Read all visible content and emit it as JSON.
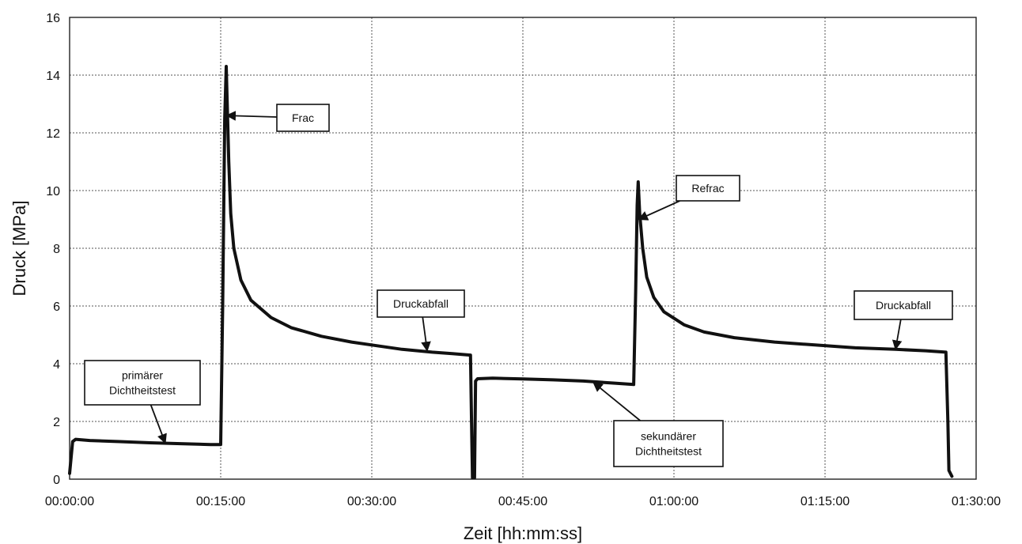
{
  "chart_data": {
    "type": "line",
    "title": "",
    "xlabel": "Zeit [hh:mm:ss]",
    "ylabel": "Druck [MPa]",
    "x_unit": "minutes",
    "xlim": [
      0,
      90
    ],
    "ylim": [
      0,
      16
    ],
    "x_ticks": [
      {
        "value": 0,
        "label": "00:00:00"
      },
      {
        "value": 15,
        "label": "00:15:00"
      },
      {
        "value": 30,
        "label": "00:30:00"
      },
      {
        "value": 45,
        "label": "00:45:00"
      },
      {
        "value": 60,
        "label": "01:00:00"
      },
      {
        "value": 75,
        "label": "01:15:00"
      },
      {
        "value": 90,
        "label": "01:30:00"
      }
    ],
    "y_ticks": [
      {
        "value": 0,
        "label": "0"
      },
      {
        "value": 2,
        "label": "2"
      },
      {
        "value": 4,
        "label": "4"
      },
      {
        "value": 6,
        "label": "6"
      },
      {
        "value": 8,
        "label": "8"
      },
      {
        "value": 10,
        "label": "10"
      },
      {
        "value": 12,
        "label": "12"
      },
      {
        "value": 14,
        "label": "14"
      },
      {
        "value": 16,
        "label": "16"
      }
    ],
    "grid": true,
    "series": [
      {
        "color": "#111111",
        "points": [
          [
            0.0,
            0.2
          ],
          [
            0.3,
            1.3
          ],
          [
            0.6,
            1.38
          ],
          [
            2,
            1.34
          ],
          [
            5,
            1.3
          ],
          [
            8,
            1.26
          ],
          [
            11,
            1.23
          ],
          [
            14,
            1.2
          ],
          [
            15.0,
            1.2
          ],
          [
            15.2,
            6.0
          ],
          [
            15.4,
            12.5
          ],
          [
            15.55,
            14.3
          ],
          [
            15.8,
            11.0
          ],
          [
            16.0,
            9.2
          ],
          [
            16.3,
            8.0
          ],
          [
            17.0,
            6.9
          ],
          [
            18.0,
            6.2
          ],
          [
            20.0,
            5.6
          ],
          [
            22.0,
            5.25
          ],
          [
            25.0,
            4.95
          ],
          [
            28.0,
            4.75
          ],
          [
            30.0,
            4.65
          ],
          [
            33.0,
            4.5
          ],
          [
            36.0,
            4.4
          ],
          [
            38.0,
            4.35
          ],
          [
            39.8,
            4.3
          ],
          [
            39.9,
            2.0
          ],
          [
            40.0,
            0.05
          ],
          [
            40.2,
            0.05
          ],
          [
            40.3,
            3.4
          ],
          [
            40.5,
            3.48
          ],
          [
            42,
            3.5
          ],
          [
            45,
            3.47
          ],
          [
            48,
            3.44
          ],
          [
            51,
            3.4
          ],
          [
            54,
            3.33
          ],
          [
            56.0,
            3.28
          ],
          [
            56.2,
            6.5
          ],
          [
            56.35,
            9.5
          ],
          [
            56.45,
            10.3
          ],
          [
            56.6,
            9.2
          ],
          [
            56.9,
            8.0
          ],
          [
            57.3,
            7.0
          ],
          [
            58.0,
            6.3
          ],
          [
            59.0,
            5.8
          ],
          [
            61.0,
            5.35
          ],
          [
            63.0,
            5.1
          ],
          [
            66.0,
            4.9
          ],
          [
            70.0,
            4.75
          ],
          [
            74.0,
            4.65
          ],
          [
            78.0,
            4.55
          ],
          [
            82.0,
            4.5
          ],
          [
            85.0,
            4.45
          ],
          [
            87.0,
            4.4
          ],
          [
            87.2,
            2.0
          ],
          [
            87.3,
            0.3
          ],
          [
            87.6,
            0.1
          ]
        ]
      }
    ],
    "annotations": [
      {
        "id": "frac",
        "lines": [
          "Frac"
        ],
        "arrow_to": [
          15.6,
          12.6
        ]
      },
      {
        "id": "refrac",
        "lines": [
          "Refrac"
        ],
        "arrow_to": [
          56.5,
          9.0
        ]
      },
      {
        "id": "druckabfall-1",
        "lines": [
          "Druckabfall"
        ],
        "arrow_to": [
          35.5,
          4.45
        ]
      },
      {
        "id": "druckabfall-2",
        "lines": [
          "Druckabfall"
        ],
        "arrow_to": [
          82.0,
          4.5
        ]
      },
      {
        "id": "primaerer-dichtheitstest",
        "lines": [
          "primärer",
          "Dichtheitstest"
        ],
        "arrow_to": [
          9.5,
          1.25
        ]
      },
      {
        "id": "sekundaerer-dichtheitstest",
        "lines": [
          "sekundärer",
          "Dichtheitstest"
        ],
        "arrow_to": [
          52.0,
          3.35
        ]
      }
    ]
  }
}
